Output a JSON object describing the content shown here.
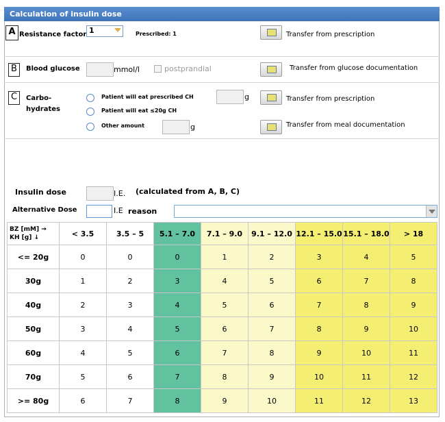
{
  "header": {
    "title": "Calculation of insulin dose"
  },
  "section_a": {
    "letter": "A",
    "label": "Resistance factor",
    "select_value": "1",
    "prescribed": "Prescribed: 1",
    "transfer": "Transfer from prescription"
  },
  "section_b": {
    "letter": "B",
    "label": "Blood glucose",
    "unit": "mmol/l",
    "checkbox": "postprandial",
    "transfer": "Transfer from glucose documentation"
  },
  "section_c": {
    "letter": "C",
    "label_lines": [
      "Carbo-",
      "hydrates"
    ],
    "options": [
      "Patient will eat prescribed CH",
      "Patient will eat ≤20g CH",
      "Other amount"
    ],
    "unit": "g",
    "transfer_prescription": "Transfer from prescription",
    "transfer_meal": "Transfer from meal documentation"
  },
  "insulin_dose": {
    "label": "Insulin dose",
    "unit": "I.E.",
    "note": "(calculated from A, B, C)"
  },
  "alternative_dose": {
    "label": "Alternative Dose",
    "unit": "I.E",
    "reason": "reason"
  },
  "table": {
    "corner": [
      "BZ [mM] →",
      "KH [g] ↓"
    ],
    "columns": [
      "< 3.5",
      "3.5 – 5",
      "5.1 – 7.0",
      "7.1 – 9.0",
      "9.1 – 12.0",
      "12.1 – 15.0",
      "15.1 – 18.0",
      "> 18"
    ],
    "rows": [
      {
        "label": "<= 20g",
        "cells": [
          0,
          0,
          0,
          1,
          2,
          3,
          4,
          5
        ]
      },
      {
        "label": "30g",
        "cells": [
          1,
          2,
          3,
          4,
          5,
          6,
          7,
          8
        ]
      },
      {
        "label": "40g",
        "cells": [
          2,
          3,
          4,
          5,
          6,
          7,
          8,
          9
        ]
      },
      {
        "label": "50g",
        "cells": [
          3,
          4,
          5,
          6,
          7,
          8,
          9,
          10
        ]
      },
      {
        "label": "60g",
        "cells": [
          4,
          5,
          6,
          7,
          8,
          9,
          10,
          11
        ]
      },
      {
        "label": "70g",
        "cells": [
          5,
          6,
          7,
          8,
          9,
          10,
          11,
          12
        ]
      },
      {
        "label": ">= 80g",
        "cells": [
          6,
          7,
          8,
          9,
          10,
          11,
          12,
          13
        ]
      }
    ]
  }
}
